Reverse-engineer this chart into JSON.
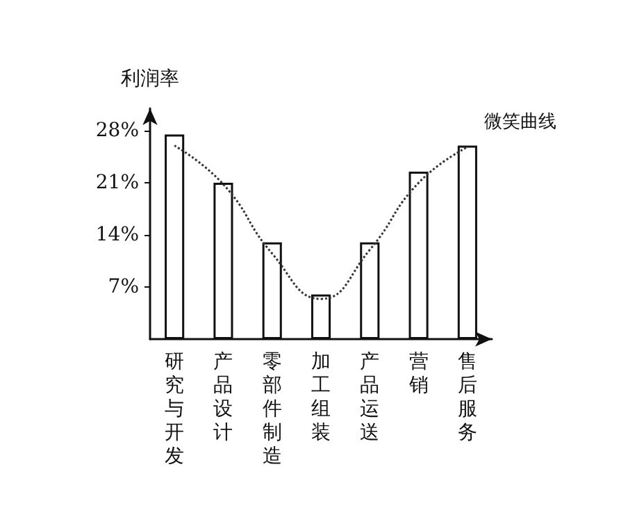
{
  "chart_data": {
    "type": "bar",
    "ylabel": "利润率",
    "categories": [
      "研究与开发",
      "产品设计",
      "零部件制造",
      "加工组装",
      "产品运送",
      "营销",
      "售后服务"
    ],
    "series": [
      {
        "color": "#ffffff",
        "values": [
          27.5,
          21,
          13,
          6,
          13,
          22.5,
          26
        ]
      },
      {
        "type": "line",
        "name": "微笑曲线",
        "color": "#333333",
        "line_style": "dotted",
        "marker": "none",
        "values": [
          26,
          20.8,
          11.5,
          5.4,
          12,
          21,
          25.8
        ]
      }
    ],
    "ylim": [
      0,
      31
    ],
    "yticks": [
      {
        "value": 7,
        "label": "7%"
      },
      {
        "value": 14,
        "label": "14%"
      },
      {
        "value": 21,
        "label": "21%"
      },
      {
        "value": 28,
        "label": "28%"
      }
    ],
    "grid": false,
    "legend": false
  }
}
